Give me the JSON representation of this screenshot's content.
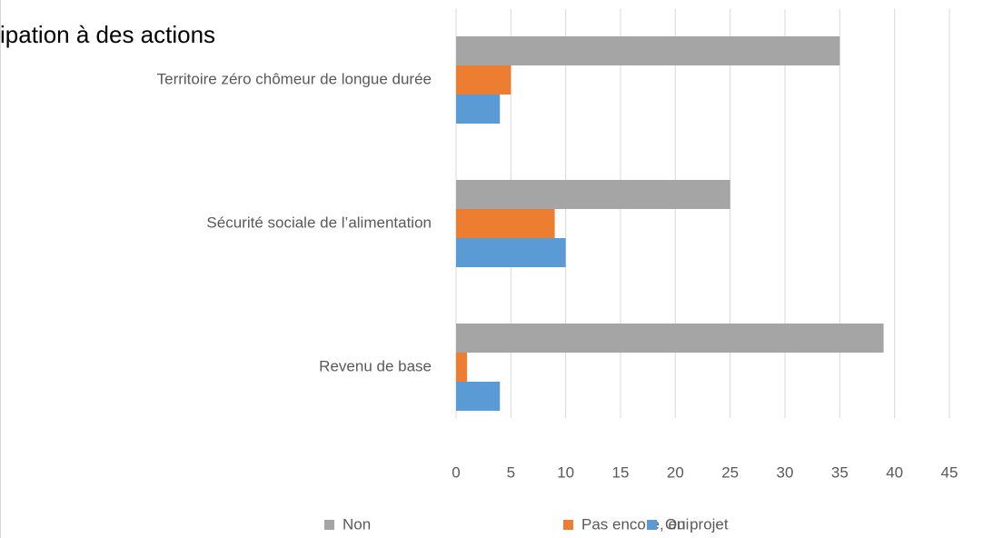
{
  "chart_data": {
    "type": "bar",
    "orientation": "horizontal",
    "title": "ipation à des actions",
    "categories": [
      "Territoire zéro chômeur de longue durée",
      "Sécurité sociale de l’alimentation",
      "Revenu de base"
    ],
    "series": [
      {
        "name": "Non",
        "color": "#a5a5a5",
        "values": [
          35,
          25,
          39
        ]
      },
      {
        "name": "Pas encore, en projet",
        "color": "#ed7d31",
        "values": [
          5,
          9,
          1
        ]
      },
      {
        "name": "Oui",
        "color": "#5b9bd5",
        "values": [
          4,
          10,
          4
        ]
      }
    ],
    "xlim": [
      0,
      45
    ],
    "xticks": [
      0,
      5,
      10,
      15,
      20,
      25,
      30,
      35,
      40,
      45
    ],
    "grid": true,
    "legend": "bottom"
  }
}
